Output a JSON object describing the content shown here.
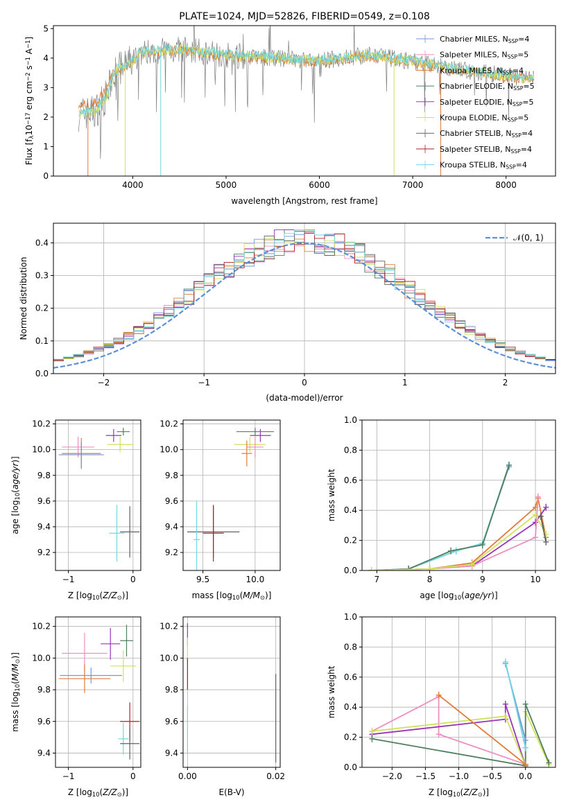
{
  "colors": {
    "Chabrier MILES": "#6f96dd",
    "Salpeter MILES": "#ee8fc0",
    "Kroupa MILES": "#e07c34",
    "Chabrier ELODIE": "#4f7f5e",
    "Salpeter ELODIE": "#9b33b8",
    "Kroupa ELODIE": "#cfe25c",
    "Chabrier STELIB": "#606060",
    "Salpeter STELIB": "#b22020",
    "Kroupa STELIB": "#6fd7df",
    "gauss": "#5b8fd9",
    "spec_gray": "#808080"
  },
  "chart_data": [
    {
      "type": "line",
      "title": "PLATE=1024, MJD=52826, FIBERID=0549, z=0.108",
      "xlabel": "wavelength [Angstrom, rest frame]",
      "ylabel": "Flux [fλ10⁻¹⁷ erg cm⁻² s⁻¹ A⁻¹]",
      "xlim": [
        3150,
        8530
      ],
      "ylim": [
        0,
        5.1
      ],
      "xticks": [
        4000,
        5000,
        6000,
        7000,
        8000
      ],
      "yticks": [
        0,
        1,
        2,
        3,
        4,
        5
      ],
      "legend_loc": "upper right",
      "legend": [
        {
          "name": "Chabrier MILES",
          "label": "Chabrier MILES, N",
          "sub": "SSP",
          "tail": "=4"
        },
        {
          "name": "Salpeter MILES",
          "label": "Salpeter MILES, N",
          "sub": "SSP",
          "tail": "=5"
        },
        {
          "name": "Kroupa MILES",
          "label": "Kroupa MILES, N",
          "sub": "SSP",
          "tail": "=4"
        },
        {
          "name": "Chabrier ELODIE",
          "label": "Chabrier ELODIE, N",
          "sub": "SSP",
          "tail": "=5"
        },
        {
          "name": "Salpeter ELODIE",
          "label": "Salpeter ELODIE, N",
          "sub": "SSP",
          "tail": "=5"
        },
        {
          "name": "Kroupa ELODIE",
          "label": "Kroupa ELODIE, N",
          "sub": "SSP",
          "tail": "=5"
        },
        {
          "name": "Chabrier STELIB",
          "label": "Chabrier STELIB, N",
          "sub": "SSP",
          "tail": "=4"
        },
        {
          "name": "Salpeter STELIB",
          "label": "Salpeter STELIB, N",
          "sub": "SSP",
          "tail": "=4"
        },
        {
          "name": "Kroupa STELIB",
          "label": "Kroupa STELIB, N",
          "sub": "SSP",
          "tail": "=4"
        }
      ],
      "continuum": {
        "x": [
          3420,
          3600,
          3720,
          3800,
          3950,
          4100,
          4300,
          4500,
          5000,
          5500,
          6000,
          6500,
          7000,
          7500,
          8000,
          8300
        ],
        "y": [
          2.1,
          2.2,
          2.7,
          3.5,
          3.8,
          4.2,
          4.25,
          4.3,
          4.1,
          4.0,
          3.9,
          4.1,
          3.9,
          3.6,
          3.4,
          3.3
        ]
      }
    },
    {
      "type": "histogram",
      "xlabel": "(data-model)/error",
      "ylabel": "Normed distribution",
      "xlim": [
        -2.5,
        2.5
      ],
      "ylim": [
        0,
        0.46
      ],
      "xticks": [
        -2,
        -1,
        0,
        1,
        2
      ],
      "yticks": [
        0.0,
        0.1,
        0.2,
        0.3,
        0.4
      ],
      "bin_width": 0.1,
      "gauss_label": "𝒩(0, 1)",
      "legend_loc": "upper right"
    },
    {
      "type": "scatter",
      "panel": "age-vs-Z",
      "xlabel": "Z [log10(Z/Z⊙)]",
      "ylabel": "age [log10(age/yr)]",
      "xlim": [
        -1.2,
        0.12
      ],
      "ylim": [
        9.06,
        10.23
      ],
      "xticks": [
        -1,
        0
      ],
      "yticks": [
        9.2,
        9.4,
        9.6,
        9.8,
        10.0,
        10.2
      ],
      "points": [
        {
          "s": "Salpeter ELODIE",
          "x": -0.3,
          "xe": 0.12,
          "y": 10.11,
          "ye": 0.05
        },
        {
          "s": "Chabrier ELODIE",
          "x": -0.15,
          "xe": 0.1,
          "y": 10.14,
          "ye": 0.03
        },
        {
          "s": "Kroupa ELODIE",
          "x": -0.2,
          "xe": 0.2,
          "y": 10.04,
          "ye": 0.06
        },
        {
          "s": "Salpeter MILES",
          "x": -0.85,
          "xe": 0.25,
          "y": 10.02,
          "ye": 0.08
        },
        {
          "s": "Kroupa MILES",
          "x": -0.8,
          "xe": 0.3,
          "y": 9.97,
          "ye": 0.12
        },
        {
          "s": "Chabrier MILES",
          "x": -0.8,
          "xe": 0.35,
          "y": 9.96,
          "ye": 0.1
        },
        {
          "s": "Kroupa STELIB",
          "x": -0.25,
          "xe": 0.12,
          "y": 9.35,
          "ye": 0.22
        },
        {
          "s": "Chabrier STELIB",
          "x": -0.05,
          "xe": 0.15,
          "y": 9.36,
          "ye": 0.2
        }
      ]
    },
    {
      "type": "scatter",
      "panel": "age-vs-mass",
      "xlabel": "mass [log10(M/M⊙)]",
      "ylabel": "",
      "xlim": [
        9.31,
        10.24
      ],
      "ylim": [
        9.06,
        10.23
      ],
      "xticks": [
        9.5,
        10.0
      ],
      "yticks": [
        9.2,
        9.4,
        9.6,
        9.8,
        10.0,
        10.2
      ],
      "points": [
        {
          "s": "Chabrier ELODIE",
          "x": 10.0,
          "xe": 0.18,
          "y": 10.14,
          "ye": 0.03
        },
        {
          "s": "Salpeter ELODIE",
          "x": 10.05,
          "xe": 0.1,
          "y": 10.11,
          "ye": 0.05
        },
        {
          "s": "Kroupa ELODIE",
          "x": 9.95,
          "xe": 0.15,
          "y": 10.04,
          "ye": 0.06
        },
        {
          "s": "Salpeter MILES",
          "x": 10.0,
          "xe": 0.08,
          "y": 10.02,
          "ye": 0.08
        },
        {
          "s": "Kroupa MILES",
          "x": 9.92,
          "xe": 0.05,
          "y": 9.97,
          "ye": 0.1
        },
        {
          "s": "Chabrier STELIB",
          "x": 9.6,
          "xe": 0.25,
          "y": 9.36,
          "ye": 0.2
        },
        {
          "s": "Kroupa STELIB",
          "x": 9.44,
          "xe": 0.03,
          "y": 9.3,
          "ye": 0.3
        },
        {
          "s": "Salpeter STELIB",
          "x": 9.6,
          "xe": 0.1,
          "y": 9.35,
          "ye": 0.22
        }
      ]
    },
    {
      "type": "line",
      "panel": "mass-weight-vs-age",
      "xlabel": "age [log10(age/yr)]",
      "ylabel": "mass weight",
      "xlim": [
        6.72,
        10.38
      ],
      "ylim": [
        0,
        1.0
      ],
      "xticks": [
        7,
        8,
        9,
        10
      ],
      "yticks": [
        0.0,
        0.2,
        0.4,
        0.6,
        0.8,
        1.0
      ],
      "series": [
        {
          "name": "Chabrier MILES",
          "x": [
            6.9,
            7.6,
            8.5,
            9.0,
            9.5
          ],
          "y": [
            0,
            0.01,
            0.13,
            0.18,
            0.69
          ]
        },
        {
          "name": "Kroupa STELIB",
          "x": [
            6.9,
            7.6,
            8.5,
            9.0,
            9.5
          ],
          "y": [
            0,
            0.01,
            0.13,
            0.18,
            0.7
          ]
        },
        {
          "name": "Chabrier ELODIE",
          "x": [
            6.9,
            7.6,
            8.4,
            9.0,
            9.5
          ],
          "y": [
            0,
            0.01,
            0.13,
            0.17,
            0.7
          ]
        },
        {
          "name": "Kroupa MILES",
          "x": [
            6.9,
            8.0,
            8.8,
            10.0,
            10.05,
            10.2
          ],
          "y": [
            0,
            0.01,
            0.05,
            0.42,
            0.48,
            0.22
          ]
        },
        {
          "name": "Salpeter ELODIE",
          "x": [
            6.9,
            8.0,
            8.8,
            10.0,
            10.2
          ],
          "y": [
            0,
            0.01,
            0.03,
            0.32,
            0.42
          ]
        },
        {
          "name": "Salpeter MILES",
          "x": [
            6.9,
            8.0,
            8.8,
            10.0,
            10.05
          ],
          "y": [
            0,
            0.01,
            0.03,
            0.22,
            0.49
          ]
        },
        {
          "name": "Kroupa ELODIE",
          "x": [
            6.9,
            8.0,
            8.8,
            10.0,
            10.2
          ],
          "y": [
            0,
            0.01,
            0.04,
            0.37,
            0.24
          ]
        },
        {
          "name": "Chabrier STELIB",
          "x": [
            10.1,
            10.2
          ],
          "y": [
            0.36,
            0.19
          ]
        }
      ]
    },
    {
      "type": "scatter",
      "panel": "mass-vs-Z",
      "xlabel": "Z [log10(Z/Z⊙)]",
      "ylabel": "mass [log10(M/M⊙)]",
      "xlim": [
        -1.2,
        0.12
      ],
      "ylim": [
        9.31,
        10.26
      ],
      "xticks": [
        -1,
        0
      ],
      "yticks": [
        9.4,
        9.6,
        9.8,
        10.0,
        10.2
      ],
      "points": [
        {
          "s": "Salpeter ELODIE",
          "x": -0.35,
          "xe": 0.15,
          "y": 10.09,
          "ye": 0.1
        },
        {
          "s": "Chabrier ELODIE",
          "x": -0.1,
          "xe": 0.1,
          "y": 10.11,
          "ye": 0.1
        },
        {
          "s": "Salpeter MILES",
          "x": -0.75,
          "xe": 0.35,
          "y": 10.03,
          "ye": 0.13
        },
        {
          "s": "Kroupa ELODIE",
          "x": -0.15,
          "xe": 0.2,
          "y": 9.95,
          "ye": 0.1
        },
        {
          "s": "Chabrier MILES",
          "x": -0.65,
          "xe": 0.48,
          "y": 9.89,
          "ye": 0.05
        },
        {
          "s": "Kroupa MILES",
          "x": -0.75,
          "xe": 0.4,
          "y": 9.87,
          "ye": 0.09
        },
        {
          "s": "Salpeter STELIB",
          "x": -0.05,
          "xe": 0.15,
          "y": 9.6,
          "ye": 0.12
        },
        {
          "s": "Kroupa STELIB",
          "x": -0.15,
          "xe": 0.08,
          "y": 9.49,
          "ye": 0.1
        },
        {
          "s": "Chabrier STELIB",
          "x": -0.05,
          "xe": 0.15,
          "y": 9.46,
          "ye": 0.1
        }
      ]
    },
    {
      "type": "scatter",
      "panel": "mass-vs-EBV",
      "xlabel": "E(B-V)",
      "ylabel": "",
      "xlim": [
        -0.001,
        0.021
      ],
      "ylim": [
        9.31,
        10.26
      ],
      "xticks": [
        0.0,
        0.02
      ],
      "xticklabels": [
        "0.00",
        "0.02"
      ],
      "yticks": [
        9.4,
        9.6,
        9.8,
        10.0,
        10.2
      ],
      "points": [
        {
          "s": "Salpeter ELODIE",
          "x": 0.0,
          "xe": 0,
          "y": 10.15,
          "ye": 0.07
        },
        {
          "s": "Kroupa ELODIE",
          "x": 0.0,
          "xe": 0,
          "y": 10.05,
          "ye": 0.08
        },
        {
          "s": "Salpeter STELIB",
          "x": 0.0,
          "xe": 0,
          "y": 9.9,
          "ye": 0.1
        },
        {
          "s": "Kroupa STELIB",
          "x": 0.0,
          "xe": 0,
          "y": 9.55,
          "ye": 0.15
        },
        {
          "s": "Chabrier STELIB",
          "x": 0.02,
          "xe": 0,
          "y": 9.62,
          "ye": 0.28
        }
      ]
    },
    {
      "type": "line",
      "panel": "mass-weight-vs-Z",
      "xlabel": "Z [log10(Z/Z⊙)]",
      "ylabel": "mass weight",
      "xlim": [
        -2.45,
        0.45
      ],
      "ylim": [
        0,
        1.0
      ],
      "xticks": [
        -2.0,
        -1.5,
        -1.0,
        -0.5,
        0.0
      ],
      "yticks": [
        0.0,
        0.2,
        0.4,
        0.6,
        0.8,
        1.0
      ],
      "series": [
        {
          "name": "Salpeter MILES",
          "x": [
            -2.3,
            -1.3,
            -1.3,
            0.0
          ],
          "y": [
            0.24,
            0.47,
            0.22,
            0.02
          ]
        },
        {
          "name": "Salpeter ELODIE",
          "x": [
            -2.3,
            -0.3,
            -0.3,
            0.0
          ],
          "y": [
            0.22,
            0.32,
            0.42,
            0.01
          ]
        },
        {
          "name": "Kroupa ELODIE",
          "x": [
            -2.3,
            -0.3,
            0.0,
            0.0,
            0.35
          ],
          "y": [
            0.24,
            0.34,
            0.01,
            0.37,
            0.02
          ]
        },
        {
          "name": "Chabrier ELODIE",
          "x": [
            -2.3,
            0.0,
            0.0,
            0.35
          ],
          "y": [
            0.19,
            0.01,
            0.42,
            0.03
          ]
        },
        {
          "name": "Kroupa MILES",
          "x": [
            -1.3,
            0.0,
            0.0
          ],
          "y": [
            0.48,
            0.02,
            0.0
          ]
        },
        {
          "name": "Chabrier MILES",
          "x": [
            -0.3,
            0.0,
            0.0
          ],
          "y": [
            0.69,
            0.18,
            0.13
          ]
        },
        {
          "name": "Kroupa STELIB",
          "x": [
            -0.3,
            0.0
          ],
          "y": [
            0.7,
            0.13
          ]
        }
      ]
    }
  ]
}
